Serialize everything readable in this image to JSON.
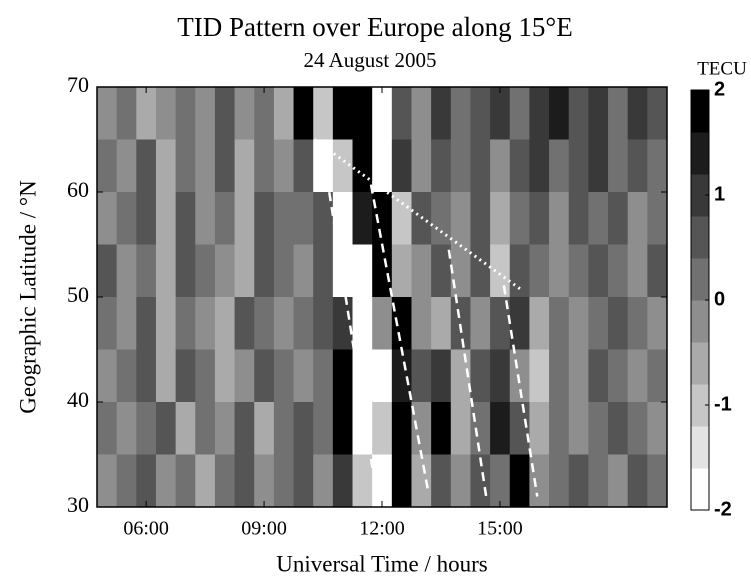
{
  "chart_data": {
    "type": "heatmap",
    "title": "TID Pattern over Europe along 15°E",
    "subtitle": "24 August 2005",
    "xlabel": "Universal Time / hours",
    "ylabel": "Geographic Latitude / °N",
    "colorbar_label": "TECU",
    "xlim": [
      4.75,
      19.25
    ],
    "ylim": [
      30,
      70
    ],
    "zlim": [
      -2,
      2
    ],
    "colorbar_levels": 10,
    "xticks": [
      {
        "value": 6,
        "label": "06:00"
      },
      {
        "value": 9,
        "label": "09:00"
      },
      {
        "value": 12,
        "label": "12:00"
      },
      {
        "value": 15,
        "label": "15:00"
      }
    ],
    "yticks": [
      30,
      40,
      50,
      60,
      70
    ],
    "zticks": [
      -2,
      -1,
      0,
      1,
      2
    ],
    "x": [
      5,
      5.5,
      6,
      6.5,
      7,
      7.5,
      8,
      8.5,
      9,
      9.5,
      10,
      10.5,
      11,
      11.5,
      12,
      12.5,
      13,
      13.5,
      14,
      14.5,
      15,
      15.5,
      16,
      16.5,
      17,
      17.5,
      18,
      18.5,
      19
    ],
    "y": [
      67.5,
      62.5,
      57.5,
      52.5,
      47.5,
      42.5,
      37.5,
      32.5
    ],
    "z": [
      [
        -0.4,
        0,
        -0.8,
        -0.4,
        0,
        -0.4,
        0.4,
        -0.4,
        0,
        -0.8,
        2,
        -1.2,
        1.6,
        2,
        -1.6,
        0.4,
        -0.4,
        0.8,
        0,
        0.4,
        0.8,
        0,
        0.8,
        1.2,
        0.4,
        0.8,
        0,
        0.8,
        0.4
      ],
      [
        0,
        -0.4,
        0.4,
        -0.8,
        0,
        -0.4,
        0.4,
        -0.8,
        0,
        -0.4,
        0.4,
        -2,
        -1.2,
        1.6,
        -1.6,
        0.8,
        -0.4,
        0.4,
        0,
        0.4,
        -0.4,
        0.4,
        0.8,
        0,
        0.4,
        0.8,
        0,
        0.4,
        0
      ],
      [
        -0.4,
        0,
        0.4,
        -0.8,
        0.4,
        -0.4,
        0,
        -0.8,
        0.4,
        0,
        0,
        0.4,
        -2,
        1.2,
        1.6,
        -1.2,
        0.4,
        0,
        -0.4,
        0.4,
        -0.8,
        0,
        0.4,
        -0.4,
        0.4,
        0,
        0.4,
        -0.4,
        0
      ],
      [
        0.4,
        -0.4,
        0,
        -0.8,
        0.4,
        0,
        -0.4,
        -0.8,
        0.4,
        0,
        -0.4,
        0.4,
        -1.6,
        -1.6,
        1.6,
        -0.8,
        -0.4,
        0.4,
        -0.4,
        0.4,
        -1.2,
        0.4,
        0,
        -0.4,
        0,
        0.4,
        0,
        -0.4,
        0.4
      ],
      [
        0,
        -0.4,
        0.4,
        -0.8,
        0,
        -0.4,
        -0.8,
        0.4,
        0,
        -0.4,
        0,
        0.4,
        0.8,
        -2,
        -0.4,
        1.6,
        -0.4,
        -0.8,
        0.4,
        -0.4,
        0.4,
        0.8,
        -0.8,
        0,
        -0.4,
        0,
        0.4,
        0,
        -0.4
      ],
      [
        -0.4,
        0,
        0.4,
        -0.8,
        0.4,
        0,
        -0.8,
        -0.4,
        0.4,
        0,
        -0.4,
        0,
        1.6,
        -2,
        -1.6,
        1.2,
        0.4,
        0.8,
        -0.8,
        0.4,
        0.8,
        -0.4,
        -1.2,
        0,
        -0.4,
        0.4,
        0,
        -0.4,
        0
      ],
      [
        0,
        -0.4,
        0,
        0.4,
        -0.8,
        0,
        -0.4,
        0.4,
        -0.8,
        0,
        0.4,
        0,
        2,
        -2,
        -1.2,
        2,
        -0.4,
        1.6,
        -0.8,
        0,
        1.2,
        0.4,
        -0.8,
        0,
        -0.4,
        0,
        0.4,
        0,
        -0.4
      ],
      [
        -0.4,
        0,
        0.4,
        -0.4,
        0,
        -0.8,
        0,
        0.4,
        -0.4,
        0,
        0.4,
        -0.4,
        0.8,
        -1.2,
        -2,
        2,
        -0.8,
        0.4,
        -0.4,
        0.4,
        0,
        2,
        -0.4,
        0,
        0.4,
        0,
        -0.4,
        0.4,
        0
      ]
    ],
    "annotations": [
      {
        "style": "dashed",
        "color": "#ffffff",
        "x": [
          10.54,
          11.9
        ],
        "y": [
          62.8,
          30.3
        ]
      },
      {
        "style": "dashed",
        "color": "#ffffff",
        "x": [
          11.72,
          13.18
        ],
        "y": [
          60.7,
          31.4
        ]
      },
      {
        "style": "dashed",
        "color": "#ffffff",
        "x": [
          13.7,
          14.67
        ],
        "y": [
          54.5,
          30.5
        ]
      },
      {
        "style": "dashed",
        "color": "#ffffff",
        "x": [
          15.1,
          15.95
        ],
        "y": [
          51.1,
          31
        ]
      },
      {
        "style": "dotted",
        "color": "#ffffff",
        "x": [
          10.28,
          15.54
        ],
        "y": [
          65,
          50.7
        ]
      }
    ]
  }
}
